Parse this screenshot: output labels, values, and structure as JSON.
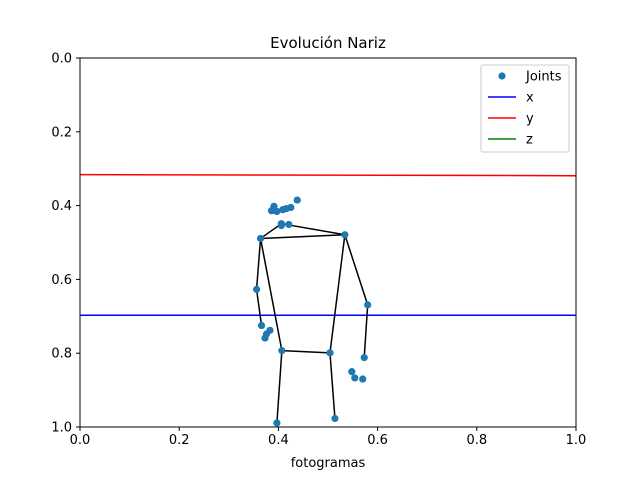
{
  "chart_data": {
    "type": "scatter",
    "title": "Evolución Nariz",
    "xlabel": "fotogramas",
    "ylabel": "",
    "xlim": [
      0,
      1
    ],
    "ylim": [
      0,
      1
    ],
    "y_inverted": true,
    "xticks": [
      "0.0",
      "0.2",
      "0.4",
      "0.6",
      "0.8",
      "1.0"
    ],
    "yticks": [
      "0.0",
      "0.2",
      "0.4",
      "0.6",
      "0.8",
      "1.0"
    ],
    "grid": false,
    "legend_position": "top-right",
    "legend": [
      {
        "label": "Joints",
        "kind": "marker",
        "color": "#1f77b4"
      },
      {
        "label": "x",
        "kind": "line",
        "color": "#0000ff"
      },
      {
        "label": "y",
        "kind": "line",
        "color": "#ff0000"
      },
      {
        "label": "z",
        "kind": "line",
        "color": "#008000"
      }
    ],
    "series": [
      {
        "name": "x",
        "color": "#0000ff",
        "x": [
          0,
          1
        ],
        "y": [
          0.697,
          0.697
        ]
      },
      {
        "name": "y",
        "color": "#ff0000",
        "x": [
          0,
          1
        ],
        "y": [
          0.316,
          0.319
        ]
      }
    ],
    "joints": {
      "name": "Joints",
      "color": "#1f77b4",
      "points": [
        {
          "x": 0.438,
          "y": 0.385
        },
        {
          "x": 0.391,
          "y": 0.402
        },
        {
          "x": 0.425,
          "y": 0.405
        },
        {
          "x": 0.416,
          "y": 0.408
        },
        {
          "x": 0.409,
          "y": 0.411
        },
        {
          "x": 0.391,
          "y": 0.413
        },
        {
          "x": 0.386,
          "y": 0.414
        },
        {
          "x": 0.397,
          "y": 0.416
        },
        {
          "x": 0.406,
          "y": 0.449
        },
        {
          "x": 0.421,
          "y": 0.451
        },
        {
          "x": 0.406,
          "y": 0.454
        },
        {
          "x": 0.364,
          "y": 0.489
        },
        {
          "x": 0.534,
          "y": 0.479
        },
        {
          "x": 0.356,
          "y": 0.627
        },
        {
          "x": 0.58,
          "y": 0.669
        },
        {
          "x": 0.366,
          "y": 0.725
        },
        {
          "x": 0.383,
          "y": 0.738
        },
        {
          "x": 0.376,
          "y": 0.748
        },
        {
          "x": 0.373,
          "y": 0.759
        },
        {
          "x": 0.407,
          "y": 0.793
        },
        {
          "x": 0.504,
          "y": 0.799
        },
        {
          "x": 0.573,
          "y": 0.812
        },
        {
          "x": 0.548,
          "y": 0.85
        },
        {
          "x": 0.554,
          "y": 0.867
        },
        {
          "x": 0.57,
          "y": 0.87
        },
        {
          "x": 0.397,
          "y": 0.989
        },
        {
          "x": 0.514,
          "y": 0.977
        }
      ]
    },
    "skeleton": {
      "color": "#000000",
      "segments": [
        [
          [
            0.406,
            0.449
          ],
          [
            0.364,
            0.489
          ]
        ],
        [
          [
            0.406,
            0.449
          ],
          [
            0.534,
            0.479
          ]
        ],
        [
          [
            0.364,
            0.489
          ],
          [
            0.534,
            0.479
          ]
        ],
        [
          [
            0.364,
            0.489
          ],
          [
            0.356,
            0.627
          ]
        ],
        [
          [
            0.356,
            0.627
          ],
          [
            0.366,
            0.725
          ]
        ],
        [
          [
            0.534,
            0.479
          ],
          [
            0.58,
            0.669
          ]
        ],
        [
          [
            0.58,
            0.669
          ],
          [
            0.573,
            0.812
          ]
        ],
        [
          [
            0.364,
            0.489
          ],
          [
            0.407,
            0.793
          ]
        ],
        [
          [
            0.534,
            0.479
          ],
          [
            0.504,
            0.799
          ]
        ],
        [
          [
            0.407,
            0.793
          ],
          [
            0.504,
            0.799
          ]
        ],
        [
          [
            0.407,
            0.793
          ],
          [
            0.397,
            0.989
          ]
        ],
        [
          [
            0.504,
            0.799
          ],
          [
            0.514,
            0.977
          ]
        ]
      ]
    }
  }
}
